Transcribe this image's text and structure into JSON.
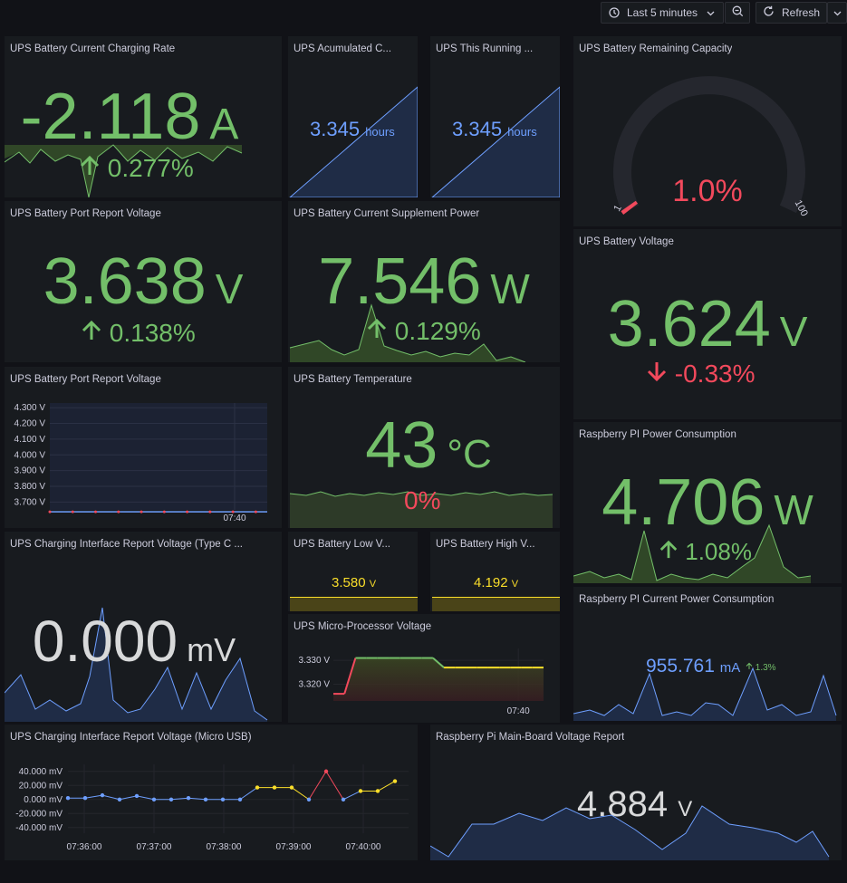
{
  "toolbar": {
    "time_range_label": "Last 5 minutes",
    "refresh_label": "Refresh"
  },
  "colors": {
    "green": "#73bf69",
    "red": "#f2495c",
    "blue": "#6e9fff",
    "yellow": "#fade2a",
    "gray_text": "#d8d9da"
  },
  "panels": {
    "charging_rate": {
      "title": "UPS Battery Current Charging Rate",
      "value": "-2.118",
      "unit": "A",
      "change": "0.277%",
      "trend": "up"
    },
    "accum_capacity": {
      "title": "UPS Acumulated C...",
      "value": "3.345",
      "unit": "hours"
    },
    "running_time": {
      "title": "UPS This Running ...",
      "value": "3.345",
      "unit": "hours"
    },
    "remaining_capacity": {
      "title": "UPS Battery Remaining Capacity",
      "value": "1.0%",
      "gauge_min": "1",
      "gauge_max": "100",
      "gauge_fraction": 0.01
    },
    "port_voltage_stat": {
      "title": "UPS Battery Port Report Voltage",
      "value": "3.638",
      "unit": "V",
      "change": "0.138%",
      "trend": "up"
    },
    "supplement_power": {
      "title": "UPS Battery Current Supplement Power",
      "value": "7.546",
      "unit": "W",
      "change": "0.129%",
      "trend": "up"
    },
    "battery_voltage": {
      "title": "UPS Battery Voltage",
      "value": "3.624",
      "unit": "V",
      "change": "-0.33%",
      "trend": "down"
    },
    "port_voltage_chart": {
      "title": "UPS Battery Port Report Voltage"
    },
    "temperature": {
      "title": "UPS Battery Temperature",
      "value": "43",
      "unit": "°C",
      "change": "0%"
    },
    "pi_power": {
      "title": "Raspberry PI Power Consumption",
      "value": "4.706",
      "unit": "W",
      "change": "1.08%",
      "trend": "up"
    },
    "typec_voltage": {
      "title": "UPS Charging Interface Report Voltage (Type C ...",
      "value": "0.000",
      "unit": "mV"
    },
    "low_voltage": {
      "title": "UPS Battery Low V...",
      "value": "3.580",
      "unit": "V"
    },
    "high_voltage": {
      "title": "UPS Battery High V...",
      "value": "4.192",
      "unit": "V"
    },
    "pi_current": {
      "title": "Raspberry PI Current Power Consumption",
      "value": "955.761",
      "unit": "mA",
      "change": "1.3%"
    },
    "mcu_voltage": {
      "title": "UPS Micro-Processor Voltage"
    },
    "microusb_voltage": {
      "title": "UPS Charging Interface Report Voltage (Micro USB)"
    },
    "mainboard_voltage": {
      "title": "Raspberry Pi Main-Board Voltage Report",
      "value": "4.884",
      "unit": "V"
    }
  },
  "chart_data": [
    {
      "type": "line",
      "title": "UPS Battery Port Report Voltage",
      "yticks": [
        "4.300 V",
        "4.200 V",
        "4.100 V",
        "4.000 V",
        "3.900 V",
        "3.800 V",
        "3.700 V"
      ],
      "ylim": [
        3.65,
        4.33
      ],
      "xticks": [
        "07:40"
      ],
      "series": [
        {
          "values": [
            3.638,
            3.638,
            3.638,
            3.638,
            3.638,
            3.638,
            3.638,
            3.638,
            3.638,
            3.638,
            3.638,
            3.638,
            3.638,
            3.638,
            3.638,
            3.638,
            3.638,
            3.638,
            3.638,
            3.638
          ]
        }
      ]
    },
    {
      "type": "line",
      "title": "UPS Micro-Processor Voltage",
      "yticks": [
        "3.330 V",
        "3.320 V"
      ],
      "ylim": [
        3.313,
        3.335
      ],
      "xticks": [
        "07:40"
      ],
      "series": [
        {
          "values": [
            3.316,
            3.316,
            3.331,
            3.331,
            3.331,
            3.331,
            3.331,
            3.331,
            3.331,
            3.331,
            3.327,
            3.327,
            3.327,
            3.327,
            3.327,
            3.327,
            3.327,
            3.327,
            3.327,
            3.327
          ]
        }
      ]
    },
    {
      "type": "line",
      "title": "UPS Charging Interface Report Voltage (Micro USB)",
      "yticks": [
        "40.000 mV",
        "20.000 mV",
        "0.000 mV",
        "-20.000 mV",
        "-40.000 mV"
      ],
      "ylim": [
        -48,
        50
      ],
      "xticks": [
        "07:36:00",
        "07:37:00",
        "07:38:00",
        "07:39:00",
        "07:40:00"
      ],
      "series": [
        {
          "values": [
            2,
            2,
            6,
            0,
            5,
            0,
            0,
            2,
            0,
            0,
            0,
            17,
            17,
            17,
            0,
            40,
            0,
            12,
            12,
            26
          ]
        }
      ]
    }
  ]
}
